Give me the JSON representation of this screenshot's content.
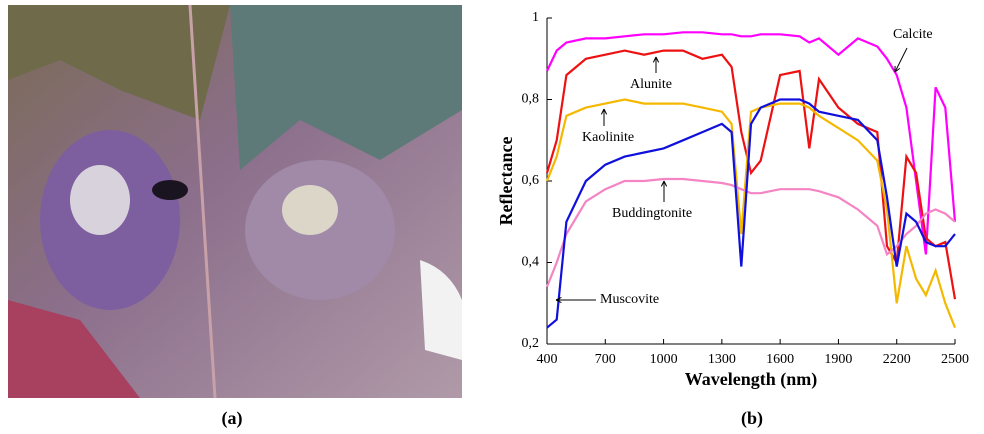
{
  "panels": {
    "a": "(a)",
    "b": "(b)"
  },
  "chart_data": {
    "type": "line",
    "x_label": "Wavelength (nm)",
    "y_label": "Reflectance",
    "x": [
      400,
      450,
      500,
      600,
      700,
      800,
      900,
      1000,
      1100,
      1200,
      1300,
      1350,
      1400,
      1450,
      1500,
      1600,
      1700,
      1750,
      1800,
      1900,
      2000,
      2100,
      2150,
      2200,
      2250,
      2300,
      2350,
      2400,
      2450,
      2500
    ],
    "xlim": [
      400,
      2500
    ],
    "ylim": [
      0.2,
      1
    ],
    "xticks": [
      400,
      700,
      1000,
      1300,
      1600,
      1900,
      2200,
      2500
    ],
    "yticks": [
      {
        "value": 0.2,
        "label": "0,2"
      },
      {
        "value": 0.4,
        "label": "0,4"
      },
      {
        "value": 0.6,
        "label": "0,6"
      },
      {
        "value": 0.8,
        "label": "0,8"
      },
      1
    ],
    "series": [
      {
        "name": "Calcite",
        "color": "#ff00ff",
        "values": [
          0.87,
          0.92,
          0.94,
          0.95,
          0.95,
          0.955,
          0.96,
          0.96,
          0.965,
          0.965,
          0.96,
          0.96,
          0.955,
          0.955,
          0.96,
          0.96,
          0.955,
          0.94,
          0.95,
          0.91,
          0.95,
          0.93,
          0.9,
          0.86,
          0.78,
          0.6,
          0.42,
          0.83,
          0.78,
          0.5
        ]
      },
      {
        "name": "Alunite",
        "color": "#ee1111",
        "values": [
          0.62,
          0.7,
          0.86,
          0.9,
          0.91,
          0.92,
          0.91,
          0.92,
          0.92,
          0.9,
          0.91,
          0.88,
          0.72,
          0.62,
          0.65,
          0.86,
          0.87,
          0.68,
          0.85,
          0.78,
          0.74,
          0.72,
          0.44,
          0.4,
          0.66,
          0.62,
          0.46,
          0.44,
          0.45,
          0.31
        ]
      },
      {
        "name": "Kaolinite",
        "color": "#f5b800",
        "values": [
          0.6,
          0.66,
          0.76,
          0.78,
          0.79,
          0.8,
          0.79,
          0.79,
          0.79,
          0.78,
          0.77,
          0.74,
          0.47,
          0.77,
          0.78,
          0.79,
          0.79,
          0.78,
          0.76,
          0.73,
          0.7,
          0.65,
          0.53,
          0.3,
          0.44,
          0.36,
          0.32,
          0.38,
          0.3,
          0.24
        ]
      },
      {
        "name": "Buddingtonite",
        "color": "#f484c4",
        "values": [
          0.34,
          0.4,
          0.47,
          0.55,
          0.58,
          0.6,
          0.6,
          0.605,
          0.605,
          0.6,
          0.595,
          0.59,
          0.58,
          0.57,
          0.57,
          0.58,
          0.58,
          0.58,
          0.575,
          0.56,
          0.53,
          0.49,
          0.42,
          0.44,
          0.47,
          0.49,
          0.52,
          0.53,
          0.52,
          0.5
        ]
      },
      {
        "name": "Muscovite",
        "color": "#1010dd",
        "values": [
          0.24,
          0.26,
          0.5,
          0.6,
          0.64,
          0.66,
          0.67,
          0.68,
          0.7,
          0.72,
          0.74,
          0.72,
          0.39,
          0.74,
          0.78,
          0.8,
          0.8,
          0.79,
          0.77,
          0.76,
          0.75,
          0.7,
          0.56,
          0.39,
          0.52,
          0.5,
          0.45,
          0.44,
          0.44,
          0.47
        ]
      }
    ]
  }
}
